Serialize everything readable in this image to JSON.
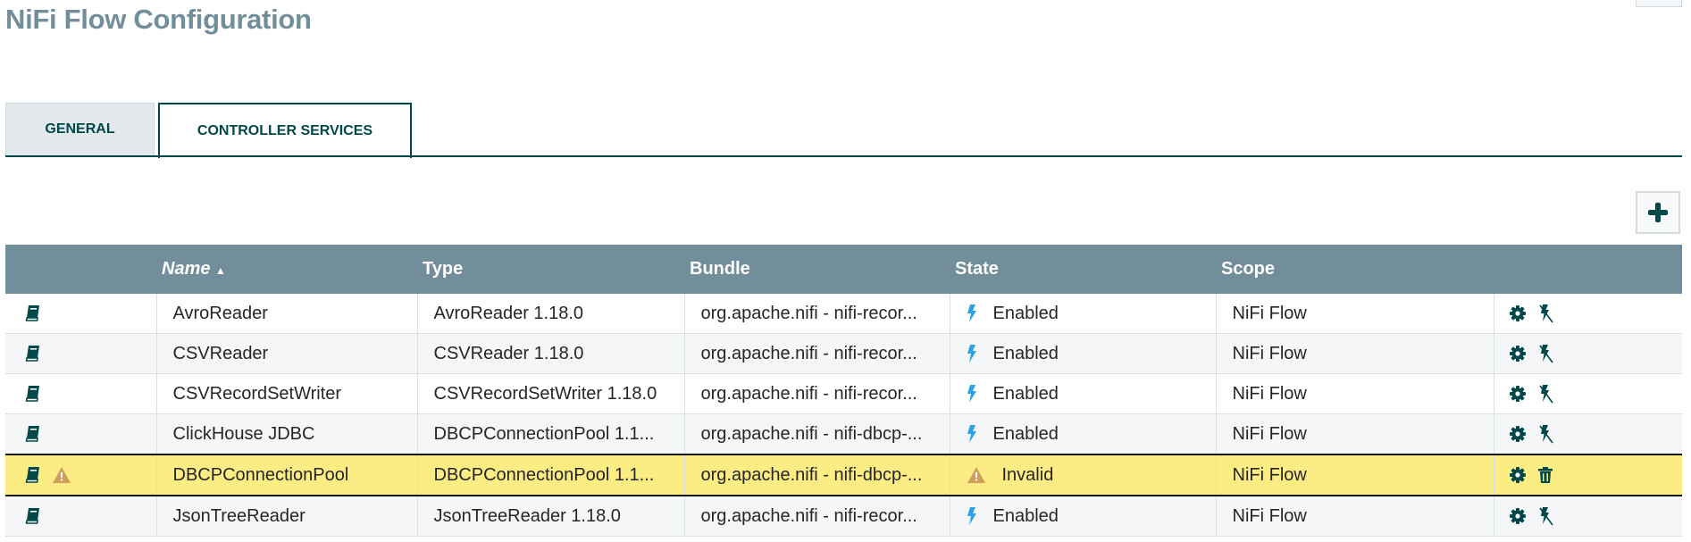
{
  "title": "NiFi Flow Configuration",
  "tabs": [
    {
      "label": "GENERAL",
      "active": false
    },
    {
      "label": "CONTROLLER SERVICES",
      "active": true
    }
  ],
  "add_button_icon": "plus-icon",
  "colors": {
    "header": "#728e9b",
    "accent": "#004849",
    "highlight": "#fcec84",
    "enabled": "#29a4e0",
    "warning": "#cf9f5d"
  },
  "table": {
    "columns": [
      "",
      "Name",
      "Type",
      "Bundle",
      "State",
      "Scope",
      ""
    ],
    "sort": {
      "column": "Name",
      "direction": "ascending"
    },
    "rows": [
      {
        "name": "AvroReader",
        "type": "AvroReader 1.18.0",
        "bundle": "org.apache.nifi - nifi-recor...",
        "state": "Enabled",
        "scope": "NiFi Flow",
        "warning": false,
        "actions": [
          "gear-icon",
          "disable-icon"
        ]
      },
      {
        "name": "CSVReader",
        "type": "CSVReader 1.18.0",
        "bundle": "org.apache.nifi - nifi-recor...",
        "state": "Enabled",
        "scope": "NiFi Flow",
        "warning": false,
        "actions": [
          "gear-icon",
          "disable-icon"
        ]
      },
      {
        "name": "CSVRecordSetWriter",
        "type": "CSVRecordSetWriter 1.18.0",
        "bundle": "org.apache.nifi - nifi-recor...",
        "state": "Enabled",
        "scope": "NiFi Flow",
        "warning": false,
        "actions": [
          "gear-icon",
          "disable-icon"
        ]
      },
      {
        "name": "ClickHouse JDBC",
        "type": "DBCPConnectionPool 1.1...",
        "bundle": "org.apache.nifi - nifi-dbcp-...",
        "state": "Enabled",
        "scope": "NiFi Flow",
        "warning": false,
        "actions": [
          "gear-icon",
          "disable-icon"
        ]
      },
      {
        "name": "DBCPConnectionPool",
        "type": "DBCPConnectionPool 1.1...",
        "bundle": "org.apache.nifi - nifi-dbcp-...",
        "state": "Invalid",
        "scope": "NiFi Flow",
        "warning": true,
        "selected": true,
        "actions": [
          "gear-icon",
          "trash-icon"
        ]
      },
      {
        "name": "JsonTreeReader",
        "type": "JsonTreeReader 1.18.0",
        "bundle": "org.apache.nifi - nifi-recor...",
        "state": "Enabled",
        "scope": "NiFi Flow",
        "warning": false,
        "actions": [
          "gear-icon",
          "disable-icon"
        ]
      }
    ]
  }
}
